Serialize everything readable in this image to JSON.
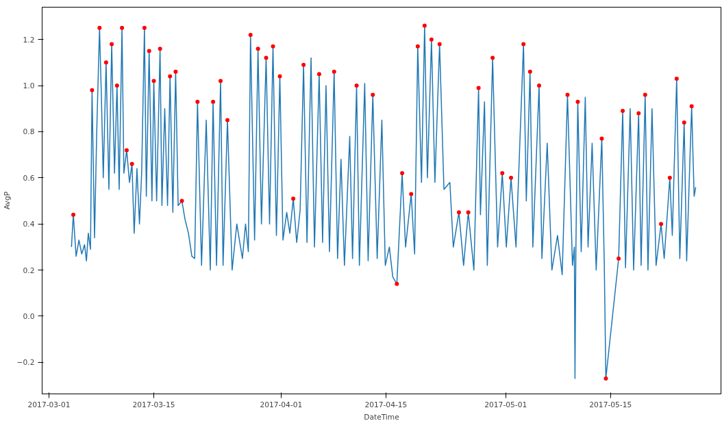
{
  "chart_data": {
    "type": "line",
    "xlabel": "DateTime",
    "ylabel": "AvgP",
    "grid": false,
    "xlim": [
      "2017-02-28T02:00",
      "2017-05-29T18:00"
    ],
    "xticks": [
      "2017-03-01",
      "2017-03-15",
      "2017-04-01",
      "2017-04-15",
      "2017-05-01",
      "2017-05-15"
    ],
    "ylim": [
      -0.337,
      1.34
    ],
    "yticks": [
      {
        "value": -0.2,
        "label": "−0.2"
      },
      {
        "value": 0,
        "label": "0.0"
      },
      {
        "value": 0.2,
        "label": "0.2"
      },
      {
        "value": 0.4,
        "label": "0.4"
      },
      {
        "value": 0.6,
        "label": "0.6"
      },
      {
        "value": 0.8,
        "label": "0.8"
      },
      {
        "value": 1.0,
        "label": "1.0"
      },
      {
        "value": 1.2,
        "label": "1.2"
      }
    ],
    "series": [
      {
        "color": "#1f77b4",
        "line_style": "solid",
        "marker": "none",
        "x": [
          "2017-03-04T00:00",
          "2017-03-04T06:00",
          "2017-03-04T15:00",
          "2017-03-05T00:00",
          "2017-03-05T09:00",
          "2017-03-05T18:00",
          "2017-03-06T00:00",
          "2017-03-06T06:00",
          "2017-03-06T13:00",
          "2017-03-06T18:00",
          "2017-03-07T02:00",
          "2017-03-07T09:00",
          "2017-03-07T18:00",
          "2017-03-08T00:00",
          "2017-03-08T06:00",
          "2017-03-08T15:00",
          "2017-03-09T00:00",
          "2017-03-09T09:00",
          "2017-03-09T18:00",
          "2017-03-10T02:00",
          "2017-03-10T09:00",
          "2017-03-10T18:00",
          "2017-03-11T00:00",
          "2017-03-11T09:00",
          "2017-03-11T18:00",
          "2017-03-12T02:00",
          "2017-03-12T09:00",
          "2017-03-12T18:00",
          "2017-03-13T02:00",
          "2017-03-13T09:00",
          "2017-03-13T18:00",
          "2017-03-14T00:00",
          "2017-03-14T09:00",
          "2017-03-14T18:00",
          "2017-03-15T00:00",
          "2017-03-15T09:00",
          "2017-03-15T20:00",
          "2017-03-16T02:00",
          "2017-03-16T11:00",
          "2017-03-16T20:00",
          "2017-03-17T04:00",
          "2017-03-17T13:00",
          "2017-03-17T22:00",
          "2017-03-18T06:00",
          "2017-03-18T18:00",
          "2017-03-19T04:00",
          "2017-03-19T15:00",
          "2017-03-20T02:00",
          "2017-03-20T11:00",
          "2017-03-20T20:00",
          "2017-03-21T09:00",
          "2017-03-22T00:00",
          "2017-03-22T13:00",
          "2017-03-22T22:00",
          "2017-03-23T09:00",
          "2017-03-23T22:00",
          "2017-03-24T06:00",
          "2017-03-24T20:00",
          "2017-03-25T11:00",
          "2017-03-26T02:00",
          "2017-03-26T20:00",
          "2017-03-27T06:00",
          "2017-03-27T15:00",
          "2017-03-27T22:00",
          "2017-03-28T11:00",
          "2017-03-28T22:00",
          "2017-03-29T09:00",
          "2017-03-30T00:00",
          "2017-03-30T11:00",
          "2017-03-30T22:00",
          "2017-03-31T09:00",
          "2017-03-31T20:00",
          "2017-04-01T06:00",
          "2017-04-01T18:00",
          "2017-04-02T04:00",
          "2017-04-02T15:00",
          "2017-04-03T02:00",
          "2017-04-03T13:00",
          "2017-04-04T00:00",
          "2017-04-04T11:00",
          "2017-04-05T00:00",
          "2017-04-05T11:00",
          "2017-04-06T02:00",
          "2017-04-06T13:00",
          "2017-04-07T00:00",
          "2017-04-07T11:00",
          "2017-04-08T02:00",
          "2017-04-08T13:00",
          "2017-04-09T00:00",
          "2017-04-09T11:00",
          "2017-04-10T04:00",
          "2017-04-10T13:00",
          "2017-04-11T02:00",
          "2017-04-11T11:00",
          "2017-04-12T04:00",
          "2017-04-12T15:00",
          "2017-04-13T06:00",
          "2017-04-13T20:00",
          "2017-04-14T11:00",
          "2017-04-14T22:00",
          "2017-04-15T11:00",
          "2017-04-15T22:00",
          "2017-04-16T11:00",
          "2017-04-17T04:00",
          "2017-04-17T15:00",
          "2017-04-18T09:00",
          "2017-04-18T20:00",
          "2017-04-19T06:00",
          "2017-04-19T18:00",
          "2017-04-20T04:00",
          "2017-04-20T13:00",
          "2017-04-21T02:00",
          "2017-04-21T13:00",
          "2017-04-22T04:00",
          "2017-04-22T18:00",
          "2017-04-23T13:00",
          "2017-04-24T00:00",
          "2017-04-24T18:00",
          "2017-04-25T09:00",
          "2017-04-26T00:00",
          "2017-04-26T18:00",
          "2017-04-27T09:00",
          "2017-04-27T15:00",
          "2017-04-28T04:00",
          "2017-04-28T13:00",
          "2017-04-29T06:00",
          "2017-04-29T22:00",
          "2017-04-30T13:00",
          "2017-05-01T02:00",
          "2017-05-01T17:00",
          "2017-05-02T09:00",
          "2017-05-03T09:00",
          "2017-05-03T18:00",
          "2017-05-04T06:00",
          "2017-05-04T15:00",
          "2017-05-05T11:00",
          "2017-05-05T20:00",
          "2017-05-06T13:00",
          "2017-05-07T04:00",
          "2017-05-07T22:00",
          "2017-05-08T13:00",
          "2017-05-09T06:00",
          "2017-05-09T22:00",
          "2017-05-10T04:00",
          "2017-05-10T06:00",
          "2017-05-10T09:00",
          "2017-05-10T15:00",
          "2017-05-11T02:00",
          "2017-05-11T15:00",
          "2017-05-12T00:00",
          "2017-05-12T13:00",
          "2017-05-13T02:00",
          "2017-05-13T20:00",
          "2017-05-14T04:00",
          "2017-05-14T09:00",
          "2017-05-16T02:00",
          "2017-05-16T15:00",
          "2017-05-17T00:00",
          "2017-05-17T15:00",
          "2017-05-18T02:00",
          "2017-05-18T18:00",
          "2017-05-19T02:00",
          "2017-05-19T15:00",
          "2017-05-20T00:00",
          "2017-05-20T13:00",
          "2017-05-21T02:00",
          "2017-05-21T18:00",
          "2017-05-22T04:00",
          "2017-05-22T22:00",
          "2017-05-23T06:00",
          "2017-05-23T20:00",
          "2017-05-24T06:00",
          "2017-05-24T20:00",
          "2017-05-25T04:00",
          "2017-05-25T20:00",
          "2017-05-26T04:00",
          "2017-05-26T09:00"
        ],
        "values": [
          0.3,
          0.44,
          0.26,
          0.33,
          0.27,
          0.31,
          0.24,
          0.36,
          0.29,
          0.98,
          0.34,
          0.8,
          1.25,
          0.95,
          0.6,
          1.1,
          0.55,
          1.18,
          0.62,
          1.0,
          0.55,
          1.25,
          0.62,
          0.72,
          0.58,
          0.66,
          0.36,
          0.64,
          0.4,
          0.62,
          1.25,
          0.52,
          1.15,
          0.5,
          1.02,
          0.5,
          1.16,
          0.48,
          0.9,
          0.48,
          1.04,
          0.45,
          1.06,
          0.48,
          0.5,
          0.42,
          0.36,
          0.26,
          0.25,
          0.93,
          0.22,
          0.85,
          0.2,
          0.93,
          0.22,
          1.02,
          0.22,
          0.85,
          0.2,
          0.4,
          0.25,
          0.4,
          0.28,
          1.22,
          0.33,
          1.16,
          0.4,
          1.12,
          0.4,
          1.17,
          0.35,
          1.04,
          0.33,
          0.45,
          0.36,
          0.51,
          0.32,
          0.46,
          1.09,
          0.32,
          1.12,
          0.3,
          1.05,
          0.32,
          1.0,
          0.28,
          1.06,
          0.25,
          0.68,
          0.22,
          0.78,
          0.25,
          1.0,
          0.22,
          1.01,
          0.24,
          0.96,
          0.25,
          0.85,
          0.22,
          0.3,
          0.17,
          0.14,
          0.62,
          0.3,
          0.53,
          0.27,
          1.17,
          0.58,
          1.26,
          0.6,
          1.2,
          0.58,
          1.18,
          0.55,
          0.58,
          0.3,
          0.45,
          0.22,
          0.45,
          0.2,
          0.99,
          0.44,
          0.93,
          0.22,
          1.12,
          0.3,
          0.62,
          0.3,
          0.6,
          0.3,
          1.18,
          0.5,
          1.06,
          0.3,
          1.0,
          0.25,
          0.75,
          0.2,
          0.35,
          0.18,
          0.96,
          0.22,
          0.3,
          -0.27,
          0.3,
          0.93,
          0.28,
          0.95,
          0.3,
          0.75,
          0.2,
          0.77,
          0.22,
          -0.27,
          0.25,
          0.89,
          0.21,
          0.9,
          0.2,
          0.88,
          0.22,
          0.96,
          0.2,
          0.9,
          0.22,
          0.4,
          0.25,
          0.6,
          0.35,
          1.03,
          0.25,
          0.84,
          0.24,
          0.91,
          0.52,
          0.56
        ]
      },
      {
        "type": "scatter",
        "color": "#ff0000",
        "marker": "circle",
        "x": [
          "2017-03-04T06:00",
          "2017-03-06T18:00",
          "2017-03-07T18:00",
          "2017-03-08T15:00",
          "2017-03-09T09:00",
          "2017-03-10T02:00",
          "2017-03-10T18:00",
          "2017-03-11T09:00",
          "2017-03-12T02:00",
          "2017-03-13T18:00",
          "2017-03-14T09:00",
          "2017-03-15T00:00",
          "2017-03-15T20:00",
          "2017-03-17T04:00",
          "2017-03-17T22:00",
          "2017-03-18T18:00",
          "2017-03-20T20:00",
          "2017-03-22T22:00",
          "2017-03-23T22:00",
          "2017-03-24T20:00",
          "2017-03-27T22:00",
          "2017-03-28T22:00",
          "2017-03-30T00:00",
          "2017-03-30T22:00",
          "2017-03-31T20:00",
          "2017-04-02T15:00",
          "2017-04-04T00:00",
          "2017-04-06T02:00",
          "2017-04-08T02:00",
          "2017-04-11T02:00",
          "2017-04-13T06:00",
          "2017-04-16T11:00",
          "2017-04-17T04:00",
          "2017-04-18T09:00",
          "2017-04-19T06:00",
          "2017-04-20T04:00",
          "2017-04-21T02:00",
          "2017-04-22T04:00",
          "2017-04-24T18:00",
          "2017-04-26T00:00",
          "2017-04-27T09:00",
          "2017-04-29T06:00",
          "2017-04-30T13:00",
          "2017-05-01T17:00",
          "2017-05-03T09:00",
          "2017-05-04T06:00",
          "2017-05-05T11:00",
          "2017-05-09T06:00",
          "2017-05-10T15:00",
          "2017-05-13T20:00",
          "2017-05-14T09:00",
          "2017-05-16T02:00",
          "2017-05-16T15:00",
          "2017-05-18T18:00",
          "2017-05-19T15:00",
          "2017-05-21T18:00",
          "2017-05-22T22:00",
          "2017-05-23T20:00",
          "2017-05-24T20:00",
          "2017-05-25T20:00"
        ],
        "values": [
          0.44,
          0.98,
          1.25,
          1.1,
          1.18,
          1.0,
          1.25,
          0.72,
          0.66,
          1.25,
          1.15,
          1.02,
          1.16,
          1.04,
          1.06,
          0.5,
          0.93,
          0.93,
          1.02,
          0.85,
          1.22,
          1.16,
          1.12,
          1.17,
          1.04,
          0.51,
          1.09,
          1.05,
          1.06,
          1.0,
          0.96,
          0.14,
          0.62,
          0.53,
          1.17,
          1.26,
          1.2,
          1.18,
          0.45,
          0.45,
          0.99,
          1.12,
          0.62,
          0.6,
          1.18,
          1.06,
          1.0,
          0.96,
          0.93,
          0.77,
          -0.27,
          0.25,
          0.89,
          0.88,
          0.96,
          0.4,
          0.6,
          1.03,
          0.84,
          0.91
        ]
      }
    ]
  }
}
